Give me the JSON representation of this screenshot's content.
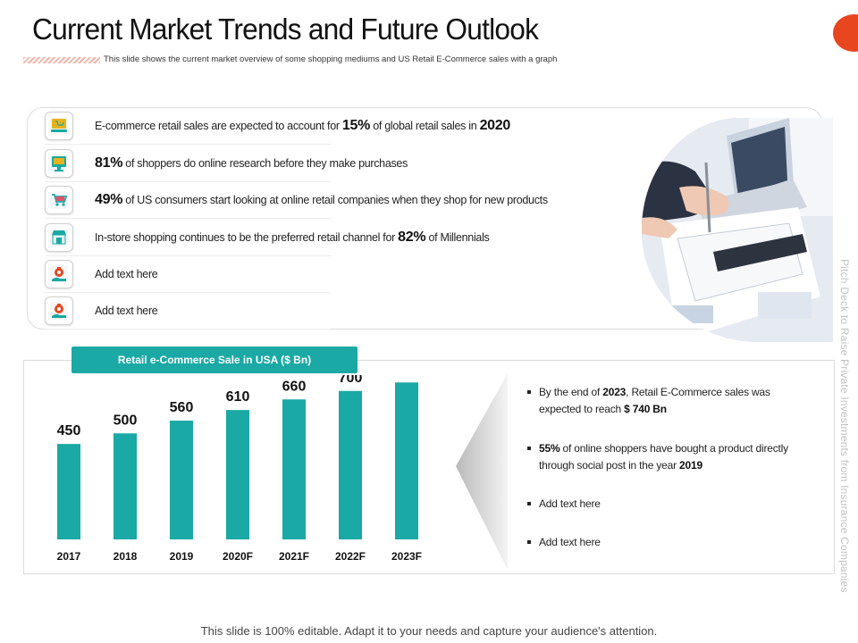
{
  "header": {
    "title": "Current Market Trends and Future Outlook",
    "subtitle": "This slide shows the current market overview of some shopping mediums and US Retail E-Commerce sales with a graph"
  },
  "side_label": "Pitch Deck to Raise Private Investments from Insurance Companies",
  "facts": [
    {
      "icon": "laptop-cart-icon",
      "pre": "E-commerce retail sales are expected to account for ",
      "value": "15%",
      "mid": " of global retail sales in ",
      "value2": "2020",
      "post": ""
    },
    {
      "icon": "monitor-cart-icon",
      "pre": "",
      "value": "81%",
      "mid": " of shoppers do online research before they make purchases",
      "value2": "",
      "post": ""
    },
    {
      "icon": "shopping-cart-icon",
      "pre": "",
      "value": "49%",
      "mid": " of US consumers start looking at online retail companies when they shop for new products",
      "value2": "",
      "post": ""
    },
    {
      "icon": "storefront-icon",
      "pre": "In-store shopping continues to be the preferred retail channel for ",
      "value": "82%",
      "mid": " of Millennials",
      "value2": "",
      "post": ""
    },
    {
      "icon": "money-bag-hand-icon",
      "pre": "Add text here",
      "value": "",
      "mid": "",
      "value2": "",
      "post": ""
    },
    {
      "icon": "money-bag-hand-icon",
      "pre": "Add text here",
      "value": "",
      "mid": "",
      "value2": "",
      "post": ""
    }
  ],
  "chart_data": {
    "type": "bar",
    "title": "Retail e-Commerce Sale in USA ($ Bn)",
    "categories": [
      "2017",
      "2018",
      "2019",
      "2020F",
      "2021F",
      "2022F",
      "2023F"
    ],
    "values": [
      450,
      500,
      560,
      610,
      660,
      700,
      740
    ],
    "ylim": [
      0,
      800
    ],
    "color": "#1aa9a4",
    "grid": false,
    "legend": "none"
  },
  "notes": [
    {
      "pre": "By the end of ",
      "b1": "2023",
      "mid": ", Retail E-Commerce sales was",
      "line2": "expected to reach ",
      "b2": "$ 740 Bn"
    },
    {
      "pre": "",
      "b1": "55%",
      "mid": " of online shoppers have bought a product directly",
      "line2": "through social post in the year ",
      "b2": "2019"
    },
    {
      "pre": "Add text here",
      "b1": "",
      "mid": "",
      "line2": "",
      "b2": ""
    },
    {
      "pre": "Add text here",
      "b1": "",
      "mid": "",
      "line2": "",
      "b2": ""
    }
  ],
  "footer": "This slide is 100% editable. Adapt it to your needs and capture your audience's attention.",
  "colors": {
    "accent": "#1aa9a4",
    "corner": "#e8461e"
  }
}
